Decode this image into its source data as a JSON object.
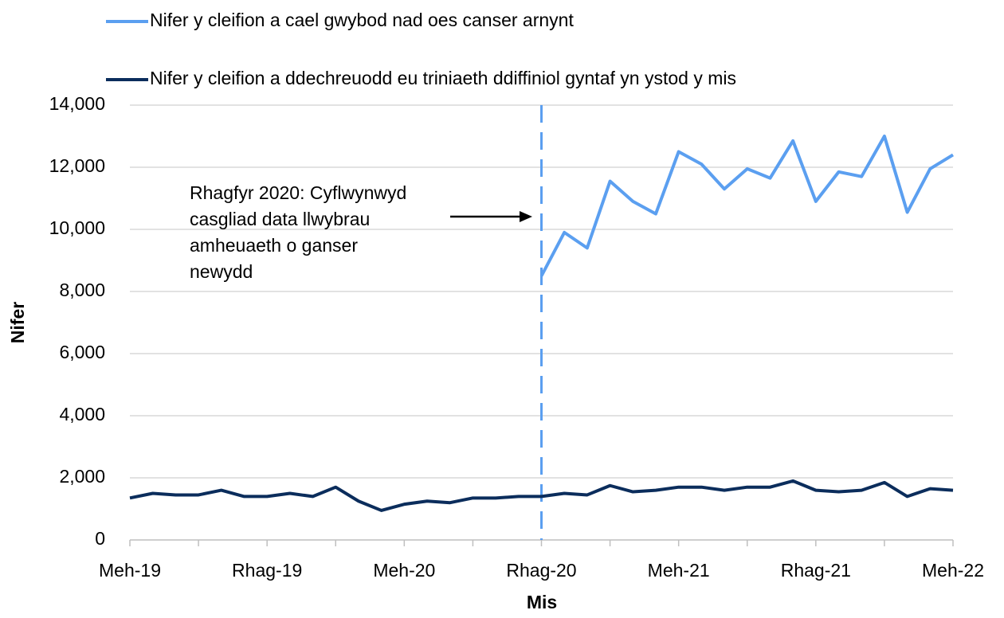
{
  "chart_data": {
    "type": "line",
    "x_label": "Mis",
    "y_label": "Nifer",
    "annotation": [
      "Rhagfyr 2020: Cyflwynwyd",
      "casgliad data llwybrau",
      "amheuaeth o ganser",
      "newydd"
    ],
    "categories": [
      "Meh-19",
      null,
      null,
      null,
      null,
      null,
      "Rhag-19",
      null,
      null,
      null,
      null,
      null,
      "Meh-20",
      null,
      null,
      null,
      null,
      null,
      "Rhag-20",
      null,
      null,
      null,
      null,
      null,
      "Meh-21",
      null,
      null,
      null,
      null,
      null,
      "Rhag-21",
      null,
      null,
      null,
      null,
      null,
      "Meh-22"
    ],
    "ylim": [
      0,
      14000
    ],
    "yticks": [
      0,
      {
        "value": 2000,
        "label": "2,000"
      },
      {
        "value": 4000,
        "label": "4,000"
      },
      {
        "value": 6000,
        "label": "6,000"
      },
      {
        "value": 8000,
        "label": "8,000"
      },
      {
        "value": 10000,
        "label": "10,000"
      },
      {
        "value": 12000,
        "label": "12,000"
      },
      {
        "value": 14000,
        "label": "14,000"
      }
    ],
    "grid": true,
    "series": [
      {
        "name": "Nifer y cleifion a cael gwybod nad oes canser arnynt",
        "color": "#5b9ff0",
        "values": [
          null,
          null,
          null,
          null,
          null,
          null,
          null,
          null,
          null,
          null,
          null,
          null,
          null,
          null,
          null,
          null,
          null,
          null,
          8500,
          9900,
          9400,
          11550,
          10900,
          10500,
          12500,
          12100,
          11300,
          11950,
          11650,
          12850,
          10900,
          11850,
          11700,
          13000,
          10550,
          11950,
          12400
        ]
      },
      {
        "name": "Nifer y cleifion a ddechreuodd eu triniaeth ddiffiniol gyntaf yn ystod y mis",
        "color": "#0b2d5c",
        "values": [
          1350,
          1500,
          1450,
          1450,
          1600,
          1400,
          1400,
          1500,
          1400,
          1700,
          1250,
          950,
          1150,
          1250,
          1200,
          1350,
          1350,
          1400,
          1400,
          1500,
          1450,
          1750,
          1550,
          1600,
          1700,
          1700,
          1600,
          1700,
          1700,
          1900,
          1600,
          1550,
          1600,
          1850,
          1400,
          1650,
          1600
        ]
      }
    ]
  }
}
